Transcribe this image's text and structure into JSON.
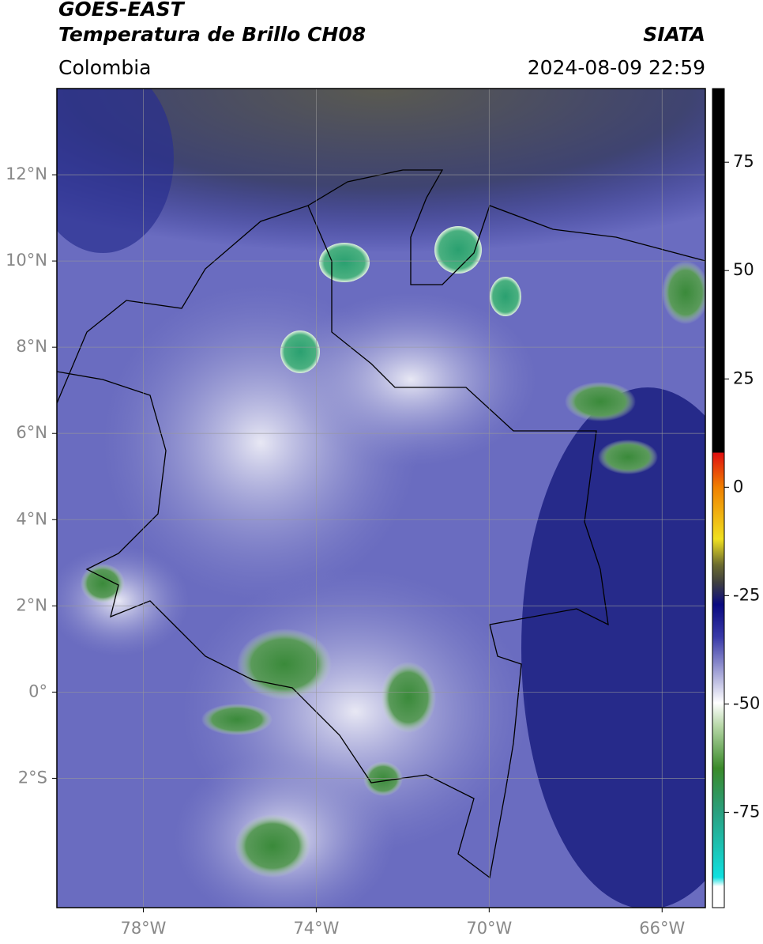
{
  "header": {
    "title": "GOES-EAST",
    "subtitle": "Temperatura de Brillo CH08",
    "source": "SIATA",
    "region": "Colombia",
    "datetime": "2024-08-09 22:59"
  },
  "map": {
    "xlim": [
      -80,
      -65
    ],
    "ylim": [
      -5,
      14
    ],
    "xticks": [
      {
        "value": -78,
        "label": "78°W"
      },
      {
        "value": -74,
        "label": "74°W"
      },
      {
        "value": -70,
        "label": "70°W"
      },
      {
        "value": -66,
        "label": "66°W"
      }
    ],
    "yticks": [
      {
        "value": 12,
        "label": "12°N"
      },
      {
        "value": 10,
        "label": "10°N"
      },
      {
        "value": 8,
        "label": "8°N"
      },
      {
        "value": 6,
        "label": "6°N"
      },
      {
        "value": 4,
        "label": "4°N"
      },
      {
        "value": 2,
        "label": "2°N"
      },
      {
        "value": 0,
        "label": "0°"
      },
      {
        "value": -2,
        "label": "2°S"
      }
    ],
    "grid": true
  },
  "colorbar": {
    "lim": [
      -97,
      92
    ],
    "ticks": [
      75,
      50,
      25,
      0,
      -25,
      -50,
      -75
    ]
  }
}
